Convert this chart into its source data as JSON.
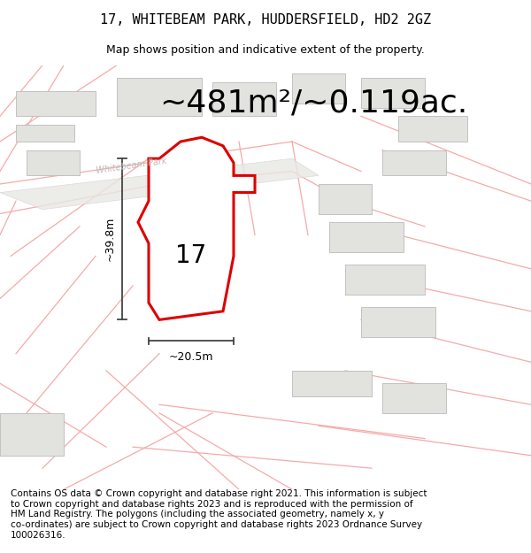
{
  "title": "17, WHITEBEAM PARK, HUDDERSFIELD, HD2 2GZ",
  "subtitle": "Map shows position and indicative extent of the property.",
  "area_text": "~481m²/~0.119ac.",
  "plot_number": "17",
  "dim_vertical": "~39.8m",
  "dim_horizontal": "~20.5m",
  "road_label": "Whitebeam Park",
  "copyright_text": "Contains OS data © Crown copyright and database right 2021. This information is subject\nto Crown copyright and database rights 2023 and is reproduced with the permission of\nHM Land Registry. The polygons (including the associated geometry, namely x, y\nco-ordinates) are subject to Crown copyright and database rights 2023 Ordnance Survey\n100026316.",
  "bg_color": "#ffffff",
  "map_bg": "#f8f8f6",
  "building_color": "#e2e2de",
  "building_edge": "#bbbbbb",
  "road_line_color": "#f5aaaa",
  "property_color": "#dd0000",
  "dim_line_color": "#444444",
  "title_fontsize": 11,
  "subtitle_fontsize": 9,
  "area_fontsize": 26,
  "copyright_fontsize": 7.5,
  "road_label_color": "#bbbbbb"
}
